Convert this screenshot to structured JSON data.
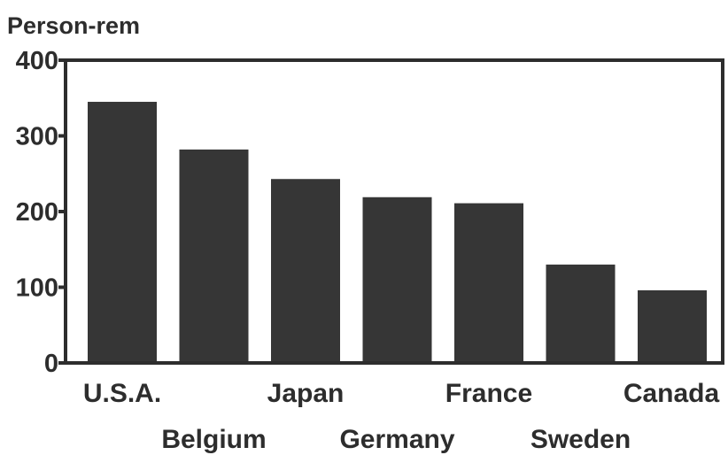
{
  "chart_data": {
    "type": "bar",
    "ylabel": "Person-rem",
    "xlabel": "",
    "categories": [
      "U.S.A.",
      "Belgium",
      "Japan",
      "Germany",
      "France",
      "Sweden",
      "Canada"
    ],
    "values": [
      345,
      282,
      243,
      219,
      211,
      130,
      96
    ],
    "ylim": [
      0,
      400
    ],
    "yticks": [
      0,
      100,
      200,
      300,
      400
    ],
    "grid": false,
    "legend": "none",
    "bar_color": "#363636",
    "axis_color": "#2d2d2d"
  }
}
